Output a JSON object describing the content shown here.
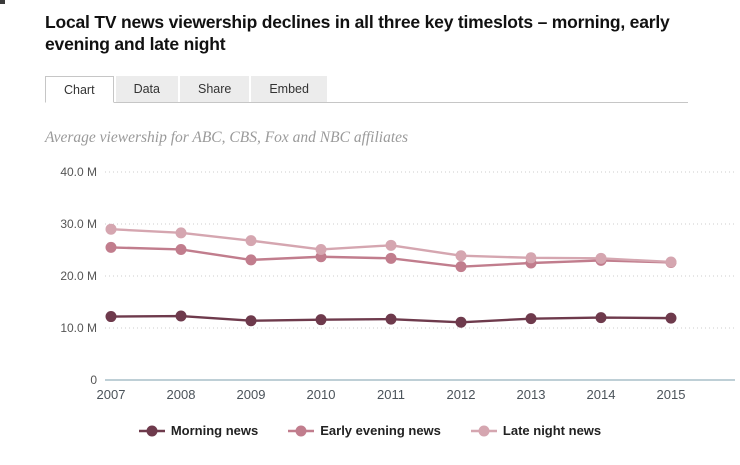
{
  "header": {
    "title": "Local TV news viewership declines in all three key timeslots – morning, early evening and late night"
  },
  "tabs": [
    {
      "label": "Chart",
      "active": true
    },
    {
      "label": "Data",
      "active": false
    },
    {
      "label": "Share",
      "active": false
    },
    {
      "label": "Embed",
      "active": false
    }
  ],
  "subtitle": "Average viewership for ABC, CBS, Fox and NBC affiliates",
  "chart_data": {
    "type": "line",
    "title": "Local TV news viewership declines in all three key timeslots – morning, early evening and late night",
    "subtitle": "Average viewership for ABC, CBS, Fox and NBC affiliates",
    "x": [
      2007,
      2008,
      2009,
      2010,
      2011,
      2012,
      2013,
      2014,
      2015
    ],
    "series": [
      {
        "name": "Morning news",
        "color": "#6e3a4c",
        "values": [
          12.2,
          12.3,
          11.4,
          11.6,
          11.7,
          11.1,
          11.8,
          12.0,
          11.9
        ]
      },
      {
        "name": "Early evening news",
        "color": "#c17d8d",
        "values": [
          25.5,
          25.1,
          23.1,
          23.7,
          23.4,
          21.8,
          22.5,
          23.0,
          22.6
        ]
      },
      {
        "name": "Late night news",
        "color": "#d5a6b0",
        "values": [
          29.0,
          28.3,
          26.8,
          25.1,
          25.9,
          23.9,
          23.5,
          23.4,
          22.7
        ]
      }
    ],
    "ylim": [
      0,
      40
    ],
    "yticks": [
      0,
      10,
      20,
      30,
      40
    ],
    "ytick_labels": [
      "0",
      "10.0 M",
      "20.0 M",
      "30.0 M",
      "40.0 M"
    ],
    "unit": "millions of viewers",
    "grid": "dotted horizontal gridlines",
    "legend_position": "bottom",
    "colors": {
      "grid": "#cccccc",
      "axis_baseline": "#a8bfc8",
      "ytick_label": "#555555",
      "xtick_label": "#4b535a"
    }
  }
}
